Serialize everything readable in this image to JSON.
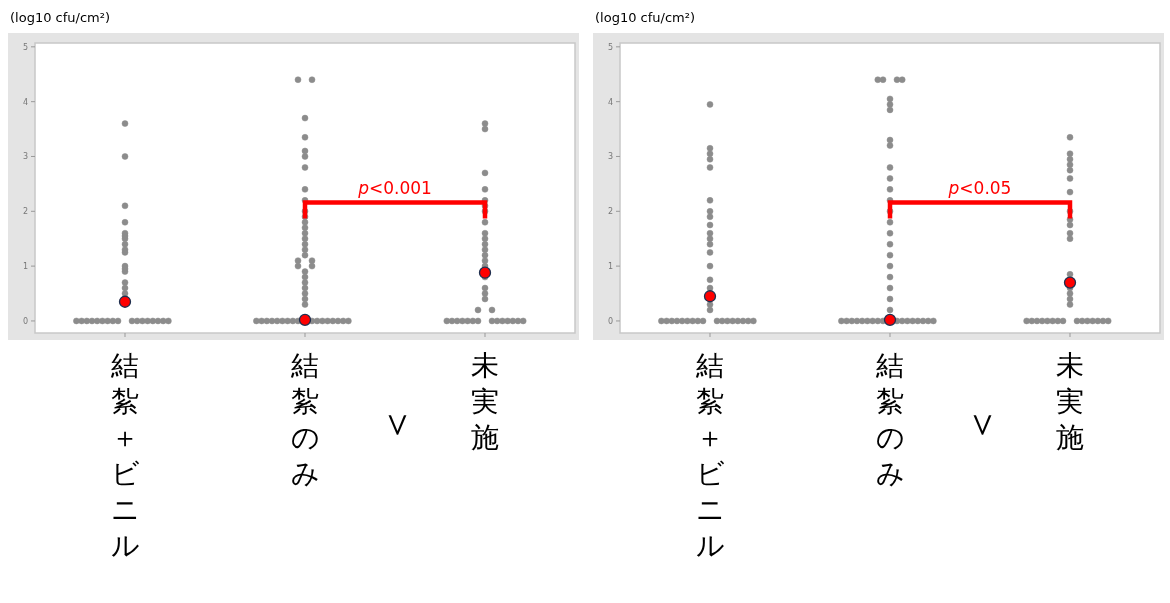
{
  "chart_data": [
    {
      "type": "scatter",
      "ylabel": "(log10 cfu/cm²)",
      "categories": [
        "結紮＋ビニル",
        "結紮のみ",
        "未実施"
      ],
      "ylim": [
        -0.22,
        5.07
      ],
      "yticks": [
        0,
        1,
        2,
        3,
        4,
        5
      ],
      "grid": false,
      "marker": "circle",
      "annotations": [
        "p<0.001",
        "＜"
      ],
      "series": [
        {
          "type": "scatter",
          "color": "#8c8c8c",
          "x": [
            "結紮＋ビニル",
            "結紮＋ビニル",
            "結紮＋ビニル",
            "結紮＋ビニル",
            "結紮＋ビニル",
            "結紮＋ビニル",
            "結紮＋ビニル",
            "結紮＋ビニル",
            "結紮＋ビニル",
            "結紮＋ビニル",
            "結紮＋ビニル",
            "結紮＋ビニル",
            "結紮＋ビニル",
            "結紮＋ビニル",
            "結紮＋ビニル",
            "結紮＋ビニル",
            "結紮＋ビニル",
            "結紮＋ビニル",
            "結紮＋ビニル",
            "結紮＋ビニル",
            "結紮＋ビニル",
            "結紮＋ビニル",
            "結紮＋ビニル",
            "結紮＋ビニル",
            "結紮＋ビニル",
            "結紮＋ビニル",
            "結紮＋ビニル",
            "結紮＋ビニル",
            "結紮＋ビニル",
            "結紮＋ビニル",
            "結紮＋ビニル",
            "結紮＋ビニル",
            "結紮＋ビニル"
          ],
          "values": [
            3.6,
            3.0,
            2.1,
            1.8,
            1.6,
            1.55,
            1.5,
            1.4,
            1.3,
            1.25,
            1.0,
            0.95,
            0.9,
            0.7,
            0.6,
            0.5,
            0,
            0,
            0,
            0,
            0,
            0,
            0,
            0,
            0,
            0,
            0,
            0,
            0,
            0,
            0,
            0,
            0
          ]
        },
        {
          "type": "scatter",
          "color": "#8c8c8c",
          "x": [
            "結紮のみ",
            "結紮のみ",
            "結紮のみ",
            "結紮のみ",
            "結紮のみ",
            "結紮のみ",
            "結紮のみ",
            "結紮のみ",
            "結紮のみ",
            "結紮のみ",
            "結紮のみ",
            "結紮のみ",
            "結紮のみ",
            "結紮のみ",
            "結紮のみ",
            "結紮のみ",
            "結紮のみ",
            "結紮のみ",
            "結紮のみ",
            "結紮のみ",
            "結紮のみ",
            "結紮のみ",
            "結紮のみ",
            "結紮のみ",
            "結紮のみ",
            "結紮のみ",
            "結紮のみ",
            "結紮のみ",
            "結紮のみ",
            "結紮のみ",
            "結紮のみ",
            "結紮のみ",
            "結紮のみ",
            "結紮のみ",
            "結紮のみ",
            "結紮のみ",
            "結紮のみ",
            "結紮のみ",
            "結紮のみ",
            "結紮のみ",
            "結紮のみ",
            "結紮のみ",
            "結紮のみ",
            "結紮のみ",
            "結紮のみ",
            "結紮のみ"
          ],
          "values": [
            4.4,
            4.4,
            3.7,
            3.35,
            3.1,
            3.0,
            2.8,
            2.4,
            2.2,
            2.0,
            1.9,
            1.8,
            1.7,
            1.6,
            1.5,
            1.4,
            1.3,
            1.2,
            1.1,
            1.1,
            1.0,
            1.0,
            0.9,
            0.8,
            0.7,
            0.6,
            0.5,
            0.4,
            0.3,
            0,
            0,
            0,
            0,
            0,
            0,
            0,
            0,
            0,
            0,
            0,
            0,
            0,
            0,
            0,
            0,
            0
          ]
        },
        {
          "type": "scatter",
          "color": "#8c8c8c",
          "x": [
            "未実施",
            "未実施",
            "未実施",
            "未実施",
            "未実施",
            "未実施",
            "未実施",
            "未実施",
            "未実施",
            "未実施",
            "未実施",
            "未実施",
            "未実施",
            "未実施",
            "未実施",
            "未実施",
            "未実施",
            "未実施",
            "未実施",
            "未実施",
            "未実施",
            "未実施",
            "未実施",
            "未実施",
            "未実施",
            "未実施",
            "未実施",
            "未実施",
            "未実施",
            "未実施",
            "未実施",
            "未実施",
            "未実施",
            "未実施",
            "未実施"
          ],
          "values": [
            3.6,
            3.5,
            2.7,
            2.4,
            2.2,
            2.1,
            2.0,
            1.8,
            1.6,
            1.5,
            1.4,
            1.3,
            1.2,
            1.1,
            1.0,
            0.8,
            0.6,
            0.5,
            0.4,
            0.2,
            0.2,
            0,
            0,
            0,
            0,
            0,
            0,
            0,
            0,
            0,
            0,
            0,
            0,
            0,
            0
          ]
        },
        {
          "type": "scatter",
          "color": "#ff0000",
          "x": [
            "結紮＋ビニル",
            "結紮のみ",
            "未実施"
          ],
          "values": [
            0.35,
            0.02,
            0.88
          ]
        }
      ]
    },
    {
      "type": "scatter",
      "ylabel": "(log10 cfu/cm²)",
      "categories": [
        "結紮＋ビニル",
        "結紮のみ",
        "未実施"
      ],
      "ylim": [
        -0.22,
        5.07
      ],
      "yticks": [
        0,
        1,
        2,
        3,
        4,
        5
      ],
      "grid": false,
      "marker": "circle",
      "annotations": [
        "p<0.05",
        "＜"
      ],
      "series": [
        {
          "type": "scatter",
          "color": "#8c8c8c",
          "x": [
            "結紮＋ビニル",
            "結紮＋ビニル",
            "結紮＋ビニル",
            "結紮＋ビニル",
            "結紮＋ビニル",
            "結紮＋ビニル",
            "結紮＋ビニル",
            "結紮＋ビニル",
            "結紮＋ビニル",
            "結紮＋ビニル",
            "結紮＋ビニル",
            "結紮＋ビニル",
            "結紮＋ビニル",
            "結紮＋ビニル",
            "結紮＋ビニル",
            "結紮＋ビニル",
            "結紮＋ビニル",
            "結紮＋ビニル",
            "結紮＋ビニル",
            "結紮＋ビニル",
            "結紮＋ビニル",
            "結紮＋ビニル",
            "結紮＋ビニル",
            "結紮＋ビニル",
            "結紮＋ビニル",
            "結紮＋ビニル",
            "結紮＋ビニル",
            "結紮＋ビニル",
            "結紮＋ビニル",
            "結紮＋ビニル",
            "結紮＋ビニル",
            "結紮＋ビニル",
            "結紮＋ビニル",
            "結紮＋ビニル",
            "結紮＋ビニル"
          ],
          "values": [
            3.95,
            3.15,
            3.05,
            2.95,
            2.8,
            2.2,
            2.0,
            1.9,
            1.75,
            1.6,
            1.5,
            1.4,
            1.25,
            1.0,
            0.75,
            0.6,
            0.3,
            0.2,
            0,
            0,
            0,
            0,
            0,
            0,
            0,
            0,
            0,
            0,
            0,
            0,
            0,
            0,
            0,
            0,
            0
          ]
        },
        {
          "type": "scatter",
          "color": "#8c8c8c",
          "x": [
            "結紮のみ",
            "結紮のみ",
            "結紮のみ",
            "結紮のみ",
            "結紮のみ",
            "結紮のみ",
            "結紮のみ",
            "結紮のみ",
            "結紮のみ",
            "結紮のみ",
            "結紮のみ",
            "結紮のみ",
            "結紮のみ",
            "結紮のみ",
            "結紮のみ",
            "結紮のみ",
            "結紮のみ",
            "結紮のみ",
            "結紮のみ",
            "結紮のみ",
            "結紮のみ",
            "結紮のみ",
            "結紮のみ",
            "結紮のみ",
            "結紮のみ",
            "結紮のみ",
            "結紮のみ",
            "結紮のみ",
            "結紮のみ",
            "結紮のみ",
            "結紮のみ",
            "結紮のみ",
            "結紮のみ",
            "結紮のみ",
            "結紮のみ",
            "結紮のみ",
            "結紮のみ",
            "結紮のみ",
            "結紮のみ",
            "結紮のみ"
          ],
          "values": [
            4.4,
            4.4,
            4.4,
            4.4,
            4.05,
            3.95,
            3.85,
            3.3,
            3.2,
            2.8,
            2.6,
            2.4,
            2.2,
            2.0,
            1.8,
            1.6,
            1.4,
            1.2,
            1.0,
            0.8,
            0.6,
            0.4,
            0.2,
            0,
            0,
            0,
            0,
            0,
            0,
            0,
            0,
            0,
            0,
            0,
            0,
            0,
            0,
            0,
            0,
            0
          ]
        },
        {
          "type": "scatter",
          "color": "#8c8c8c",
          "x": [
            "未実施",
            "未実施",
            "未実施",
            "未実施",
            "未実施",
            "未実施",
            "未実施",
            "未実施",
            "未実施",
            "未実施",
            "未実施",
            "未実施",
            "未実施",
            "未実施",
            "未実施",
            "未実施",
            "未実施",
            "未実施",
            "未実施",
            "未実施",
            "未実施",
            "未実施",
            "未実施",
            "未実施",
            "未実施",
            "未実施",
            "未実施",
            "未実施",
            "未実施",
            "未実施",
            "未実施",
            "未実施"
          ],
          "values": [
            3.35,
            3.05,
            2.95,
            2.85,
            2.75,
            2.6,
            2.35,
            2.0,
            1.85,
            1.75,
            1.6,
            1.5,
            0.85,
            0.6,
            0.5,
            0.4,
            0.3,
            0,
            0,
            0,
            0,
            0,
            0,
            0,
            0,
            0,
            0,
            0,
            0,
            0,
            0,
            0
          ]
        },
        {
          "type": "scatter",
          "color": "#ff0000",
          "x": [
            "結紮＋ビニル",
            "結紮のみ",
            "未実施"
          ],
          "values": [
            0.45,
            0.02,
            0.7
          ]
        }
      ]
    }
  ]
}
